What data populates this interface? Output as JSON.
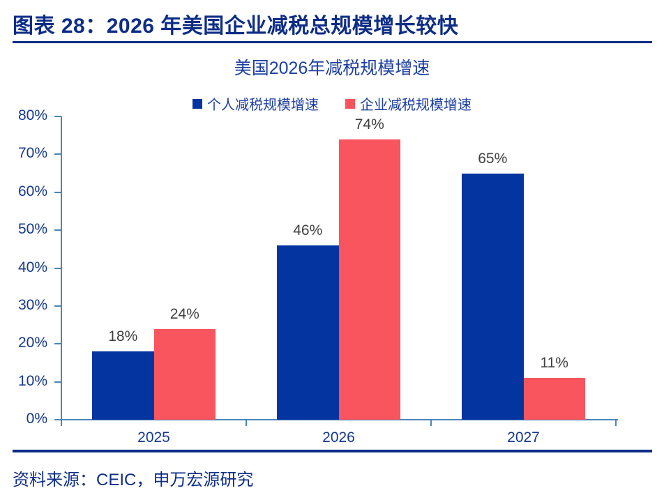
{
  "page": {
    "header_title": "图表 28：2026 年美国企业减税总规模增长较快",
    "source": "资料来源：CEIC，申万宏源研究"
  },
  "colors": {
    "header_navy": "#0d2d87",
    "title_blue": "#1c3fa0",
    "axis_blue": "#4a86b8",
    "bar_blue": "#0434a0",
    "bar_red": "#f8555e",
    "data_label_gray": "#404040",
    "tick_label_blue": "#15398f"
  },
  "chart_data": {
    "type": "bar",
    "title": "美国2026年减税规模增速",
    "categories": [
      "2025",
      "2026",
      "2027"
    ],
    "series": [
      {
        "name": "个人减税规模增速",
        "color": "#0434a0",
        "values": [
          18,
          46,
          65
        ]
      },
      {
        "name": "企业减税规模增速",
        "color": "#f8555e",
        "values": [
          24,
          74,
          11
        ]
      }
    ],
    "data_labels": [
      [
        "18%",
        "46%",
        "65%"
      ],
      [
        "24%",
        "74%",
        "11%"
      ]
    ],
    "ylabel": "",
    "xlabel": "",
    "ylim": [
      0,
      80
    ],
    "y_tick_step": 10,
    "y_tick_labels": [
      "0%",
      "10%",
      "20%",
      "30%",
      "40%",
      "50%",
      "60%",
      "70%",
      "80%"
    ],
    "grid": false,
    "legend_position": "top-center"
  }
}
